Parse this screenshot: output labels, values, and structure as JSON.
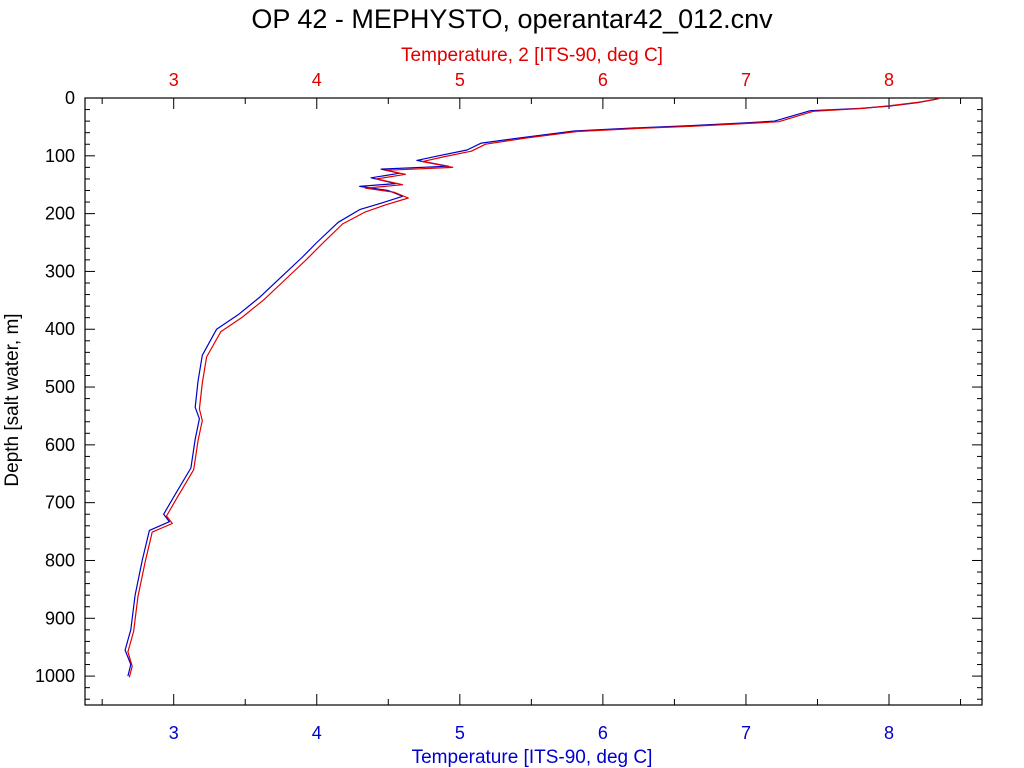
{
  "chart_data": {
    "type": "line",
    "title": "OP 42 - MEPHYSTO, operantar42_012.cnv",
    "ylabel": "Depth [salt water, m]",
    "xlabel_bottom": "Temperature [ITS-90, deg C]",
    "xlabel_top": "Temperature, 2 [ITS-90, deg C]",
    "ylim": [
      1050,
      0
    ],
    "xlim": [
      2.38,
      8.65
    ],
    "y_ticks": [
      0,
      100,
      200,
      300,
      400,
      500,
      600,
      700,
      800,
      900,
      1000
    ],
    "y_tick_labels": [
      "0",
      "100",
      "200",
      "300",
      "400",
      "500",
      "600",
      "700",
      "800",
      "900",
      "1000"
    ],
    "x_ticks": [
      3,
      4,
      5,
      6,
      7,
      8
    ],
    "x_tick_labels_bottom": [
      "3",
      "4",
      "5",
      "6",
      "7",
      "8"
    ],
    "x_tick_labels_top": [
      "3",
      "4",
      "5",
      "6",
      "7",
      "8"
    ],
    "grid": false,
    "colors": {
      "primary": "#0000cc",
      "secondary": "#e00000",
      "axis": "#000000"
    },
    "series": [
      {
        "axis": "bottom",
        "color": "#0000cc",
        "points": [
          [
            8.33,
            2
          ],
          [
            8.2,
            8
          ],
          [
            8.0,
            14
          ],
          [
            7.8,
            18
          ],
          [
            7.45,
            22
          ],
          [
            7.2,
            40
          ],
          [
            7.0,
            43
          ],
          [
            6.6,
            48
          ],
          [
            6.2,
            52
          ],
          [
            5.8,
            57
          ],
          [
            5.45,
            68
          ],
          [
            5.15,
            78
          ],
          [
            5.05,
            90
          ],
          [
            4.85,
            100
          ],
          [
            4.7,
            108
          ],
          [
            4.92,
            118
          ],
          [
            4.45,
            123
          ],
          [
            4.58,
            130
          ],
          [
            4.38,
            138
          ],
          [
            4.55,
            148
          ],
          [
            4.3,
            153
          ],
          [
            4.5,
            160
          ],
          [
            4.6,
            170
          ],
          [
            4.45,
            182
          ],
          [
            4.3,
            193
          ],
          [
            4.15,
            215
          ],
          [
            4.0,
            250
          ],
          [
            3.9,
            275
          ],
          [
            3.75,
            310
          ],
          [
            3.6,
            345
          ],
          [
            3.45,
            375
          ],
          [
            3.3,
            400
          ],
          [
            3.2,
            445
          ],
          [
            3.17,
            490
          ],
          [
            3.15,
            535
          ],
          [
            3.18,
            555
          ],
          [
            3.15,
            590
          ],
          [
            3.12,
            640
          ],
          [
            3.0,
            690
          ],
          [
            2.93,
            720
          ],
          [
            2.97,
            733
          ],
          [
            2.83,
            748
          ],
          [
            2.78,
            800
          ],
          [
            2.73,
            860
          ],
          [
            2.7,
            920
          ],
          [
            2.66,
            955
          ],
          [
            2.7,
            980
          ],
          [
            2.68,
            1000
          ]
        ]
      },
      {
        "axis": "top",
        "color": "#e00000",
        "points": [
          [
            8.35,
            1
          ],
          [
            8.22,
            7
          ],
          [
            8.02,
            13
          ],
          [
            7.82,
            18
          ],
          [
            7.47,
            23
          ],
          [
            7.23,
            41
          ],
          [
            7.02,
            44
          ],
          [
            6.62,
            49
          ],
          [
            6.22,
            53
          ],
          [
            5.82,
            58
          ],
          [
            5.47,
            69
          ],
          [
            5.18,
            80
          ],
          [
            5.08,
            92
          ],
          [
            4.88,
            102
          ],
          [
            4.74,
            110
          ],
          [
            4.95,
            120
          ],
          [
            4.48,
            125
          ],
          [
            4.62,
            132
          ],
          [
            4.42,
            140
          ],
          [
            4.6,
            150
          ],
          [
            4.34,
            156
          ],
          [
            4.54,
            163
          ],
          [
            4.64,
            173
          ],
          [
            4.48,
            185
          ],
          [
            4.34,
            197
          ],
          [
            4.18,
            218
          ],
          [
            4.03,
            254
          ],
          [
            3.93,
            279
          ],
          [
            3.78,
            314
          ],
          [
            3.63,
            349
          ],
          [
            3.48,
            379
          ],
          [
            3.33,
            404
          ],
          [
            3.23,
            448
          ],
          [
            3.2,
            493
          ],
          [
            3.18,
            538
          ],
          [
            3.2,
            558
          ],
          [
            3.17,
            593
          ],
          [
            3.14,
            643
          ],
          [
            3.02,
            693
          ],
          [
            2.95,
            723
          ],
          [
            2.99,
            736
          ],
          [
            2.85,
            751
          ],
          [
            2.8,
            803
          ],
          [
            2.75,
            863
          ],
          [
            2.72,
            923
          ],
          [
            2.68,
            958
          ],
          [
            2.71,
            983
          ],
          [
            2.69,
            1002
          ]
        ]
      }
    ]
  }
}
